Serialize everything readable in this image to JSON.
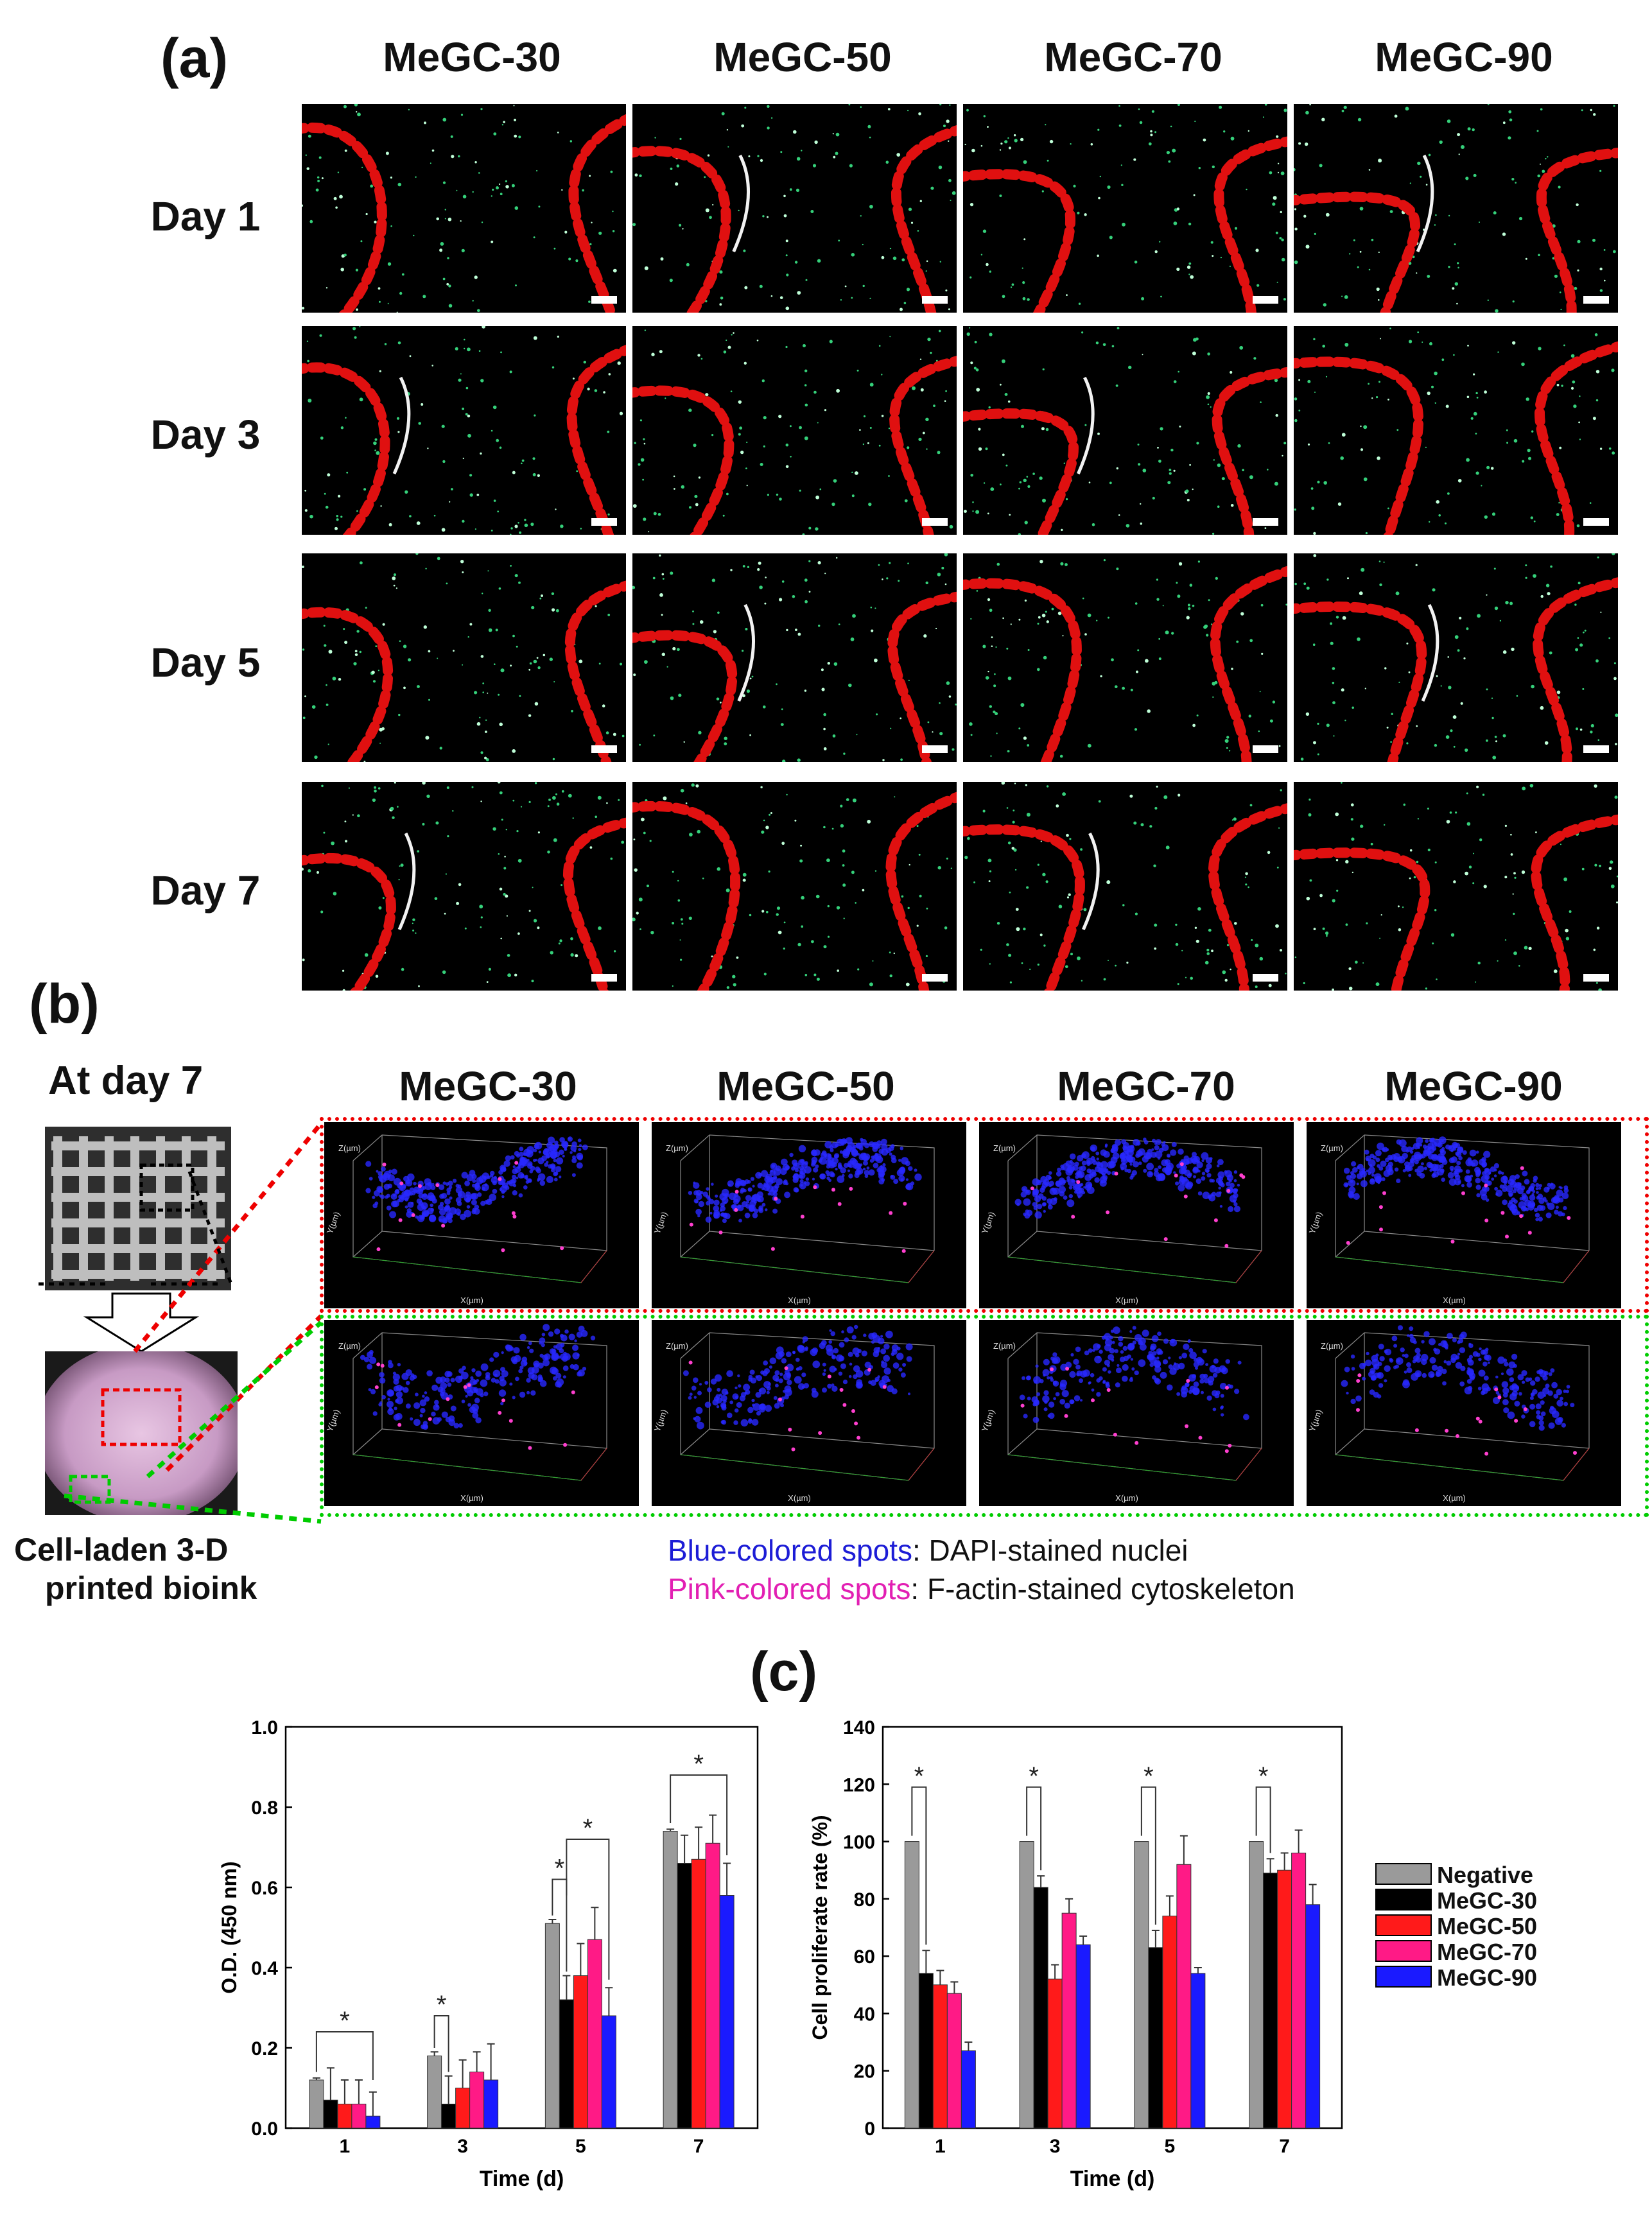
{
  "panel_a": {
    "letter": "(a)",
    "columns": [
      "MeGC-30",
      "MeGC-50",
      "MeGC-70",
      "MeGC-90"
    ],
    "rows": [
      "Day 1",
      "Day 3",
      "Day 5",
      "Day 7"
    ]
  },
  "panel_b": {
    "letter": "(b)",
    "title": "At day 7",
    "columns": [
      "MeGC-30",
      "MeGC-50",
      "MeGC-70",
      "MeGC-90"
    ],
    "photo_caption": [
      "Cell-laden 3-D",
      "printed bioink"
    ],
    "legend": [
      {
        "colored": "Blue-colored spots",
        "rest": ": DAPI-stained nuclei",
        "color": "#1c1cd6"
      },
      {
        "colored": "Pink-colored spots",
        "rest": ": F-actin-stained cytoskeleton",
        "color": "#e21fb3"
      }
    ],
    "axis_labels": {
      "x": "X(µm)",
      "y": "Y(µm)",
      "z": "Z(µm)"
    }
  },
  "panel_c": {
    "letter": "(c)"
  },
  "legend": {
    "items": [
      {
        "name": "Negative",
        "color": "#9a9a9a"
      },
      {
        "name": "MeGC-30",
        "color": "#000000"
      },
      {
        "name": "MeGC-50",
        "color": "#ff1a1a"
      },
      {
        "name": "MeGC-70",
        "color": "#ff1a86"
      },
      {
        "name": "MeGC-90",
        "color": "#1a1aff"
      }
    ]
  },
  "chart_data": [
    {
      "type": "bar",
      "xlabel": "Time (d)",
      "ylabel": "O.D. (450 nm)",
      "categories": [
        "1",
        "3",
        "5",
        "7"
      ],
      "ylim": [
        0.0,
        1.0
      ],
      "yticks": [
        "0.0",
        "0.2",
        "0.4",
        "0.6",
        "0.8",
        "1.0"
      ],
      "series": [
        {
          "name": "Negative",
          "values": [
            0.12,
            0.18,
            0.51,
            0.74
          ],
          "errors": [
            0.005,
            0.01,
            0.01,
            0.005
          ]
        },
        {
          "name": "MeGC-30",
          "values": [
            0.07,
            0.06,
            0.32,
            0.66
          ],
          "errors": [
            0.08,
            0.07,
            0.06,
            0.07
          ]
        },
        {
          "name": "MeGC-50",
          "values": [
            0.06,
            0.1,
            0.38,
            0.67
          ],
          "errors": [
            0.06,
            0.07,
            0.08,
            0.08
          ]
        },
        {
          "name": "MeGC-70",
          "values": [
            0.06,
            0.14,
            0.47,
            0.71
          ],
          "errors": [
            0.06,
            0.05,
            0.08,
            0.07
          ]
        },
        {
          "name": "MeGC-90",
          "values": [
            0.03,
            0.12,
            0.28,
            0.58
          ],
          "errors": [
            0.06,
            0.09,
            0.07,
            0.08
          ]
        }
      ],
      "annotations": [
        "*",
        "*",
        "*",
        "*",
        "*"
      ]
    },
    {
      "type": "bar",
      "xlabel": "Time (d)",
      "ylabel": "Cell proliferate rate (%)",
      "categories": [
        "1",
        "3",
        "5",
        "7"
      ],
      "ylim": [
        0,
        140
      ],
      "yticks": [
        "0",
        "20",
        "40",
        "60",
        "80",
        "100",
        "120",
        "140"
      ],
      "series": [
        {
          "name": "Negative",
          "values": [
            100,
            100,
            100,
            100
          ],
          "errors": [
            0,
            0,
            0,
            0
          ]
        },
        {
          "name": "MeGC-30",
          "values": [
            54,
            84,
            63,
            89
          ],
          "errors": [
            8,
            4,
            6,
            5
          ]
        },
        {
          "name": "MeGC-50",
          "values": [
            50,
            52,
            74,
            90
          ],
          "errors": [
            5,
            5,
            7,
            6
          ]
        },
        {
          "name": "MeGC-70",
          "values": [
            47,
            75,
            92,
            96
          ],
          "errors": [
            4,
            5,
            10,
            8
          ]
        },
        {
          "name": "MeGC-90",
          "values": [
            27,
            64,
            54,
            78
          ],
          "errors": [
            3,
            3,
            2,
            7
          ]
        }
      ],
      "annotations": [
        "*",
        "*",
        "*",
        "*"
      ]
    }
  ]
}
